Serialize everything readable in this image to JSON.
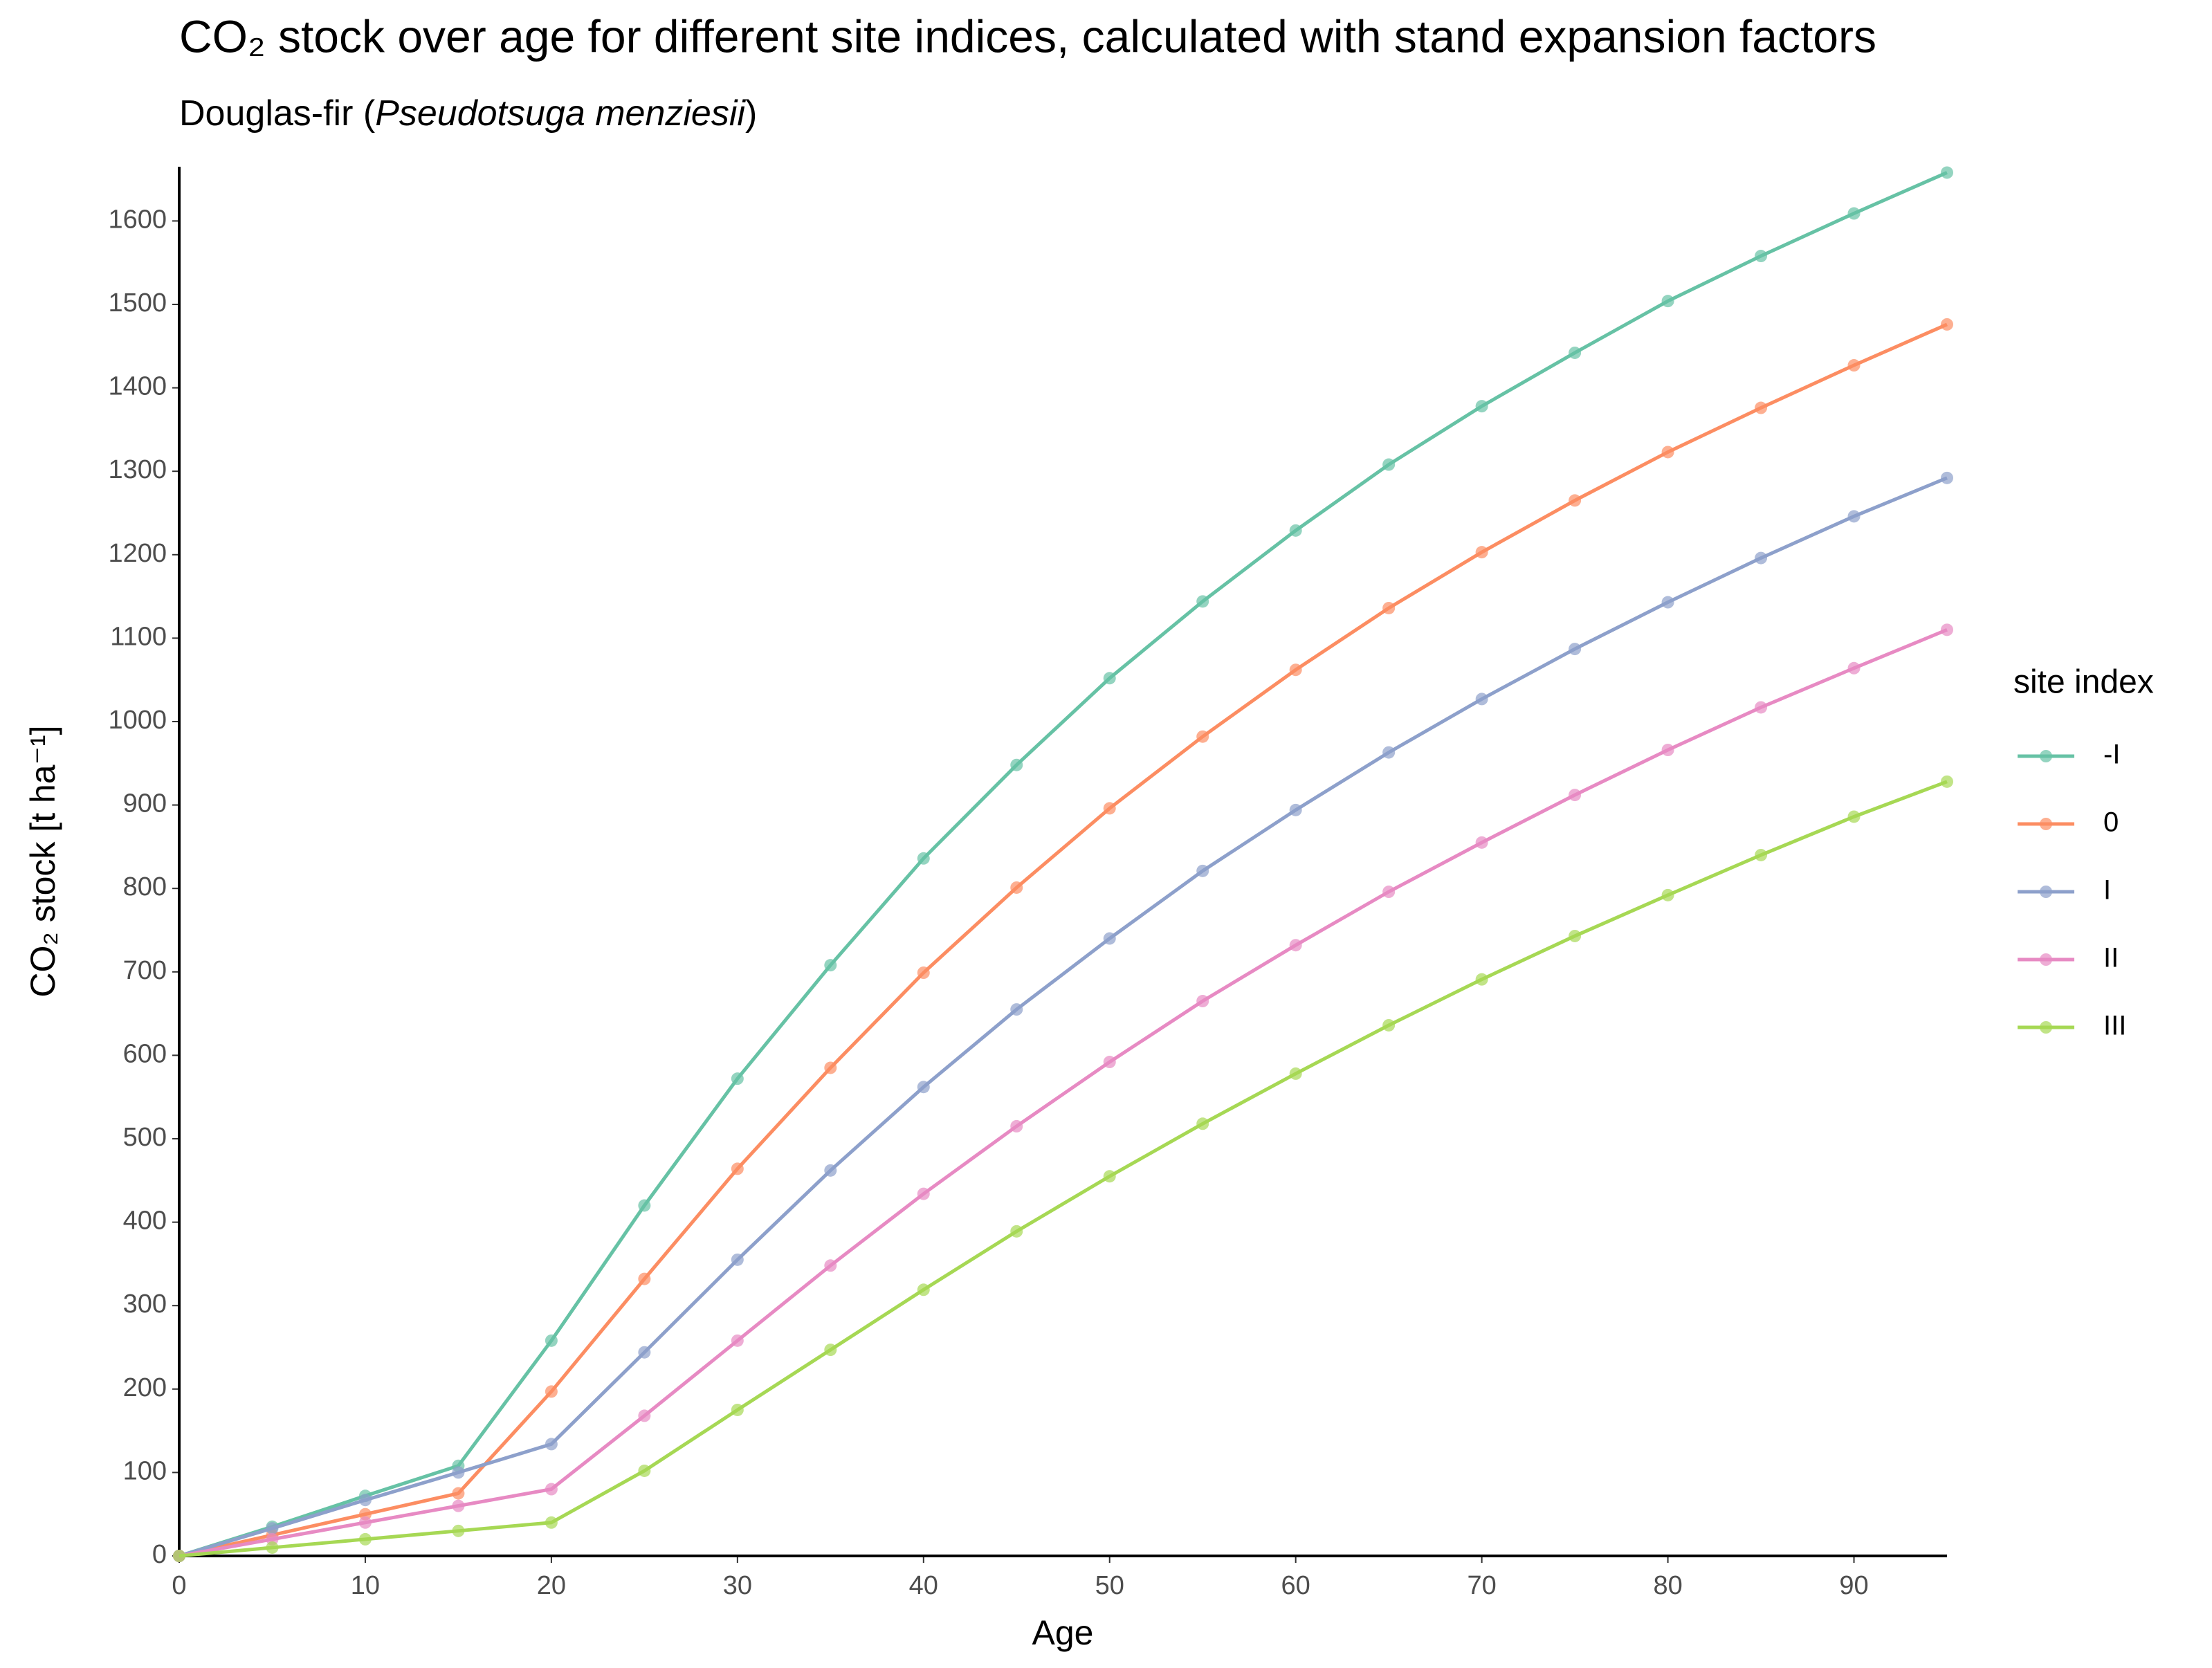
{
  "chart_data": {
    "type": "line",
    "title": "CO₂ stock over age for different site indices, calculated with stand expansion factors",
    "subtitle": [
      "Douglas-fir (",
      "Pseudotsuga menziesii",
      ")"
    ],
    "x_label": "Age",
    "y_label": "CO₂ stock [t ha⁻¹]",
    "legend_title": "site index",
    "legend_position": "right",
    "grid": false,
    "x": [
      0,
      5,
      10,
      15,
      20,
      25,
      30,
      35,
      40,
      45,
      50,
      55,
      60,
      65,
      70,
      75,
      80,
      85,
      90,
      95
    ],
    "xlim": [
      0,
      95
    ],
    "xticks": [
      0,
      10,
      20,
      30,
      40,
      50,
      60,
      70,
      80,
      90
    ],
    "ylim": [
      0,
      1665
    ],
    "yticks": [
      0,
      100,
      200,
      300,
      400,
      500,
      600,
      700,
      800,
      900,
      1000,
      1100,
      1200,
      1300,
      1400,
      1500,
      1600
    ],
    "series": [
      {
        "name": "-I",
        "color": "#66c2a5",
        "values": [
          0,
          35,
          72,
          108,
          258,
          420,
          572,
          708,
          836,
          948,
          1052,
          1144,
          1229,
          1308,
          1378,
          1442,
          1504,
          1558,
          1609,
          1658
        ]
      },
      {
        "name": "0",
        "color": "#fc8d62",
        "values": [
          0,
          25,
          50,
          75,
          197,
          332,
          464,
          585,
          699,
          801,
          896,
          982,
          1062,
          1136,
          1203,
          1265,
          1323,
          1376,
          1427,
          1476
        ]
      },
      {
        "name": "I",
        "color": "#8da0cb",
        "values": [
          0,
          33,
          67,
          100,
          134,
          244,
          355,
          462,
          562,
          655,
          740,
          821,
          894,
          963,
          1027,
          1087,
          1143,
          1196,
          1246,
          1292
        ]
      },
      {
        "name": "II",
        "color": "#e78ac3",
        "values": [
          0,
          20,
          40,
          60,
          80,
          168,
          258,
          348,
          434,
          515,
          592,
          665,
          732,
          796,
          855,
          912,
          966,
          1017,
          1064,
          1110
        ]
      },
      {
        "name": "III",
        "color": "#a6d854",
        "values": [
          0,
          10,
          20,
          30,
          40,
          102,
          175,
          247,
          319,
          389,
          455,
          518,
          578,
          636,
          691,
          743,
          792,
          840,
          886,
          928
        ]
      }
    ]
  }
}
